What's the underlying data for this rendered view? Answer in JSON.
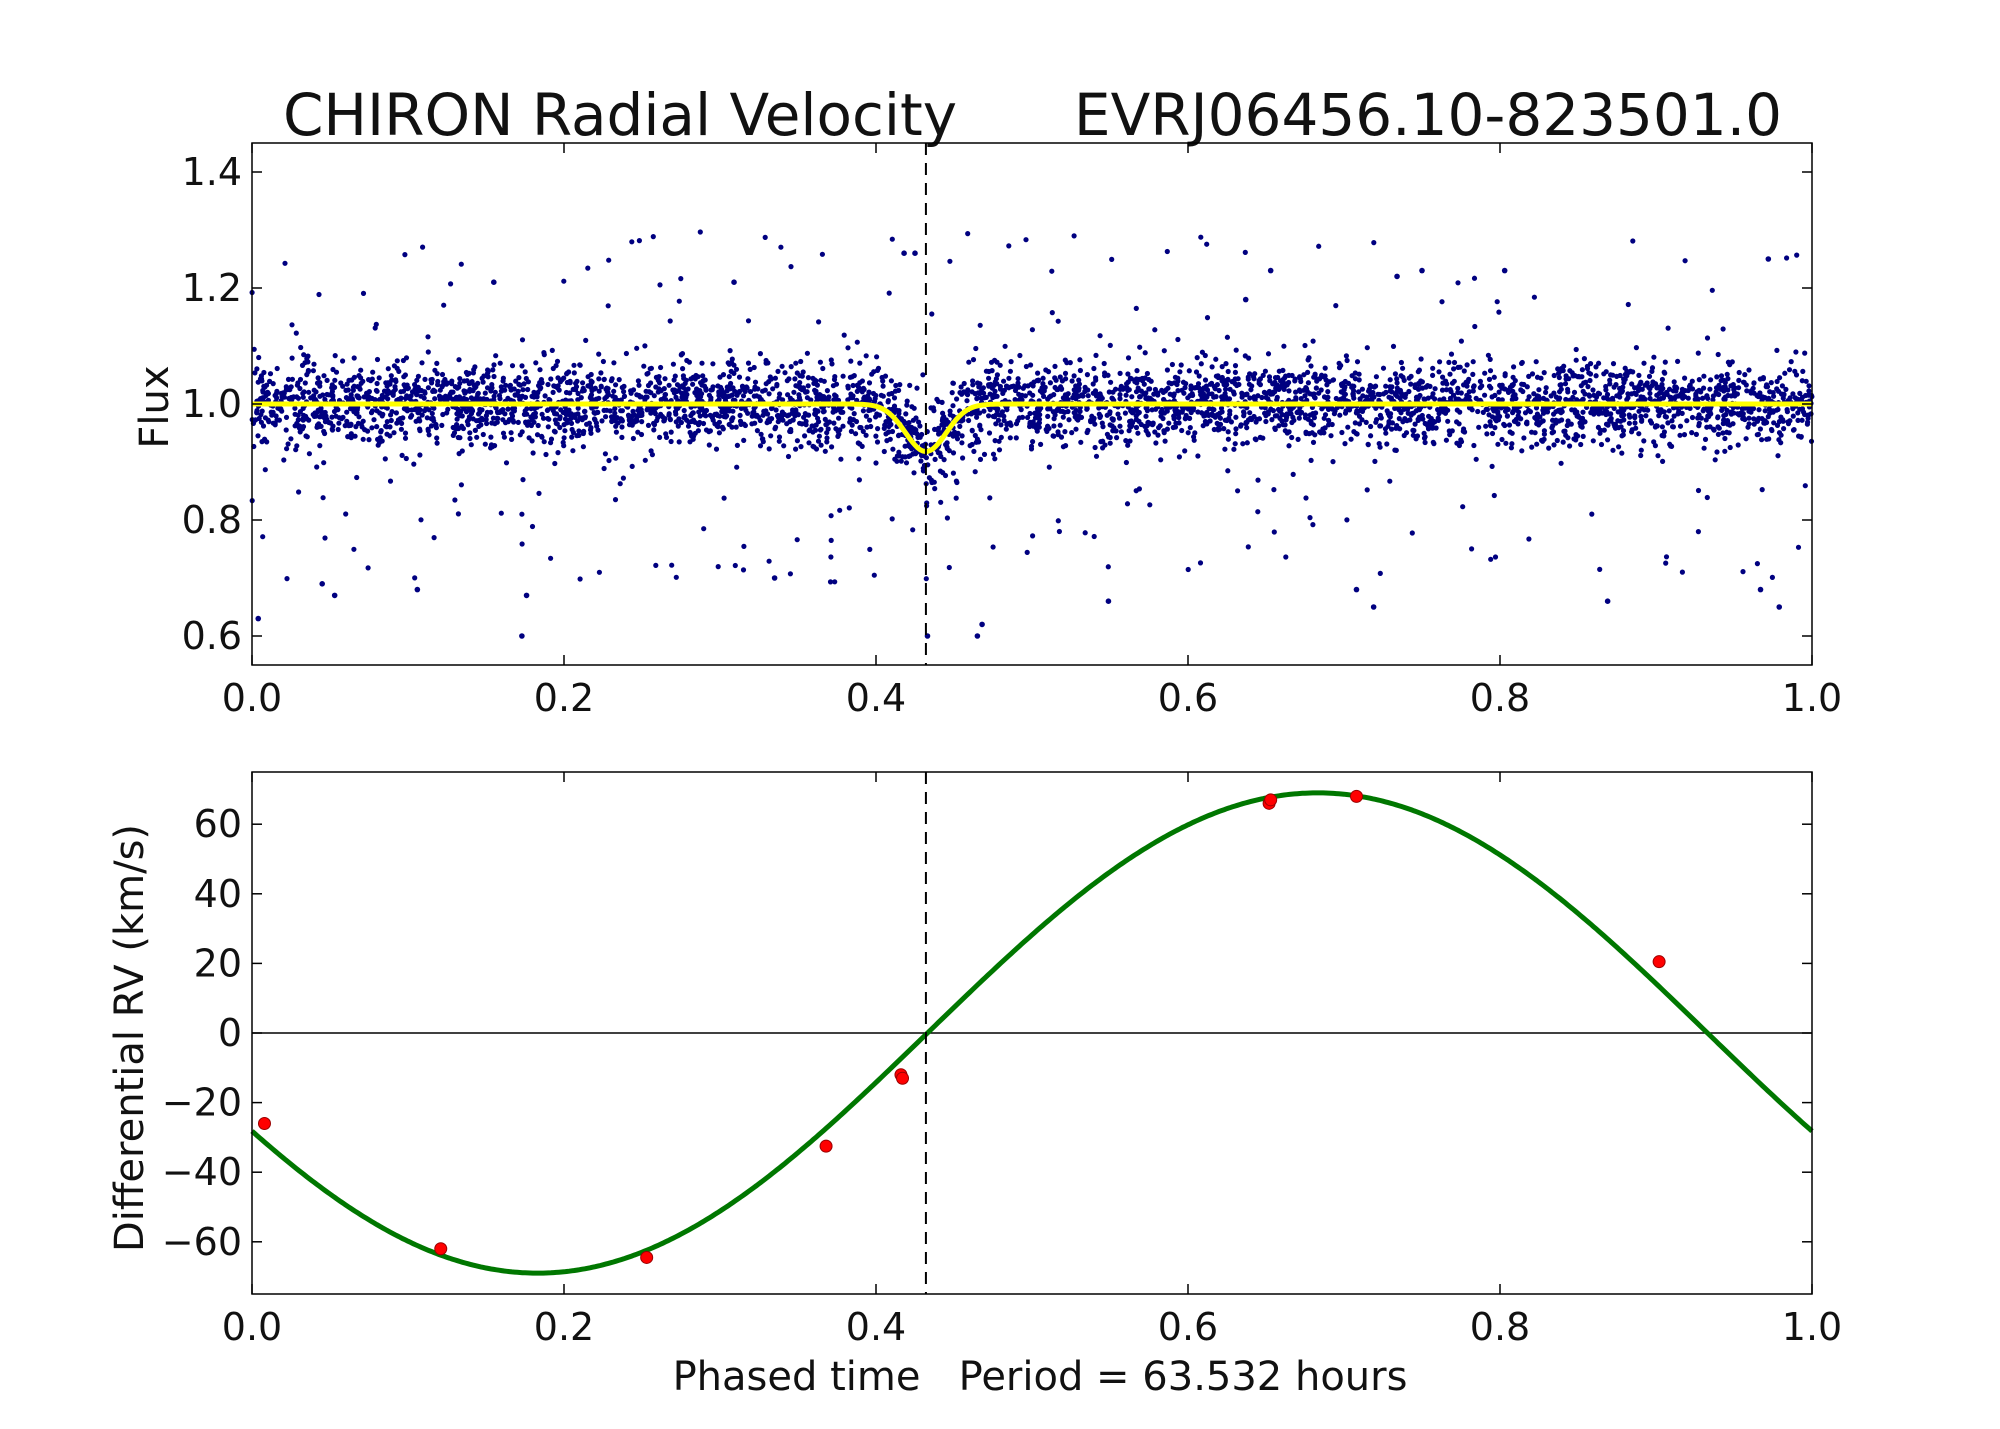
{
  "chart_data": [
    {
      "type": "scatter",
      "title": "CHIRON Radial Velocity",
      "object_name": "EVRJ06456.10-823501.0",
      "xlabel": "",
      "ylabel": "Flux",
      "xlim": [
        0.0,
        1.0
      ],
      "ylim": [
        0.55,
        1.45
      ],
      "xticks": [
        0.0,
        0.2,
        0.4,
        0.6,
        0.8,
        1.0
      ],
      "xtick_labels": [
        "0.0",
        "0.2",
        "0.4",
        "0.6",
        "0.8",
        "1.0"
      ],
      "yticks": [
        0.6,
        0.8,
        1.0,
        1.2,
        1.4
      ],
      "ytick_labels": [
        "0.6",
        "0.8",
        "1.0",
        "1.2",
        "1.4"
      ],
      "transit_phase": 0.432,
      "series": [
        {
          "name": "observed flux",
          "kind": "scatter",
          "color": "#000080",
          "description": "dense phased photometry, baseline flux 1.0 with scatter ~0.04",
          "n_points_approx": 4500,
          "baseline": 1.0,
          "scatter_sigma": 0.035,
          "outliers_sample": [
            {
              "x": 0.004,
              "y": 0.63
            },
            {
              "x": 0.045,
              "y": 0.69
            },
            {
              "x": 0.053,
              "y": 0.67
            },
            {
              "x": 0.106,
              "y": 0.68
            },
            {
              "x": 0.155,
              "y": 1.21
            },
            {
              "x": 0.173,
              "y": 0.6
            },
            {
              "x": 0.176,
              "y": 0.67
            },
            {
              "x": 0.309,
              "y": 1.21
            },
            {
              "x": 0.335,
              "y": 0.7
            },
            {
              "x": 0.418,
              "y": 1.26
            },
            {
              "x": 0.425,
              "y": 1.26
            },
            {
              "x": 0.433,
              "y": 0.6
            },
            {
              "x": 0.465,
              "y": 0.6
            },
            {
              "x": 0.468,
              "y": 0.62
            },
            {
              "x": 0.549,
              "y": 0.66
            },
            {
              "x": 0.637,
              "y": 1.18
            },
            {
              "x": 0.653,
              "y": 1.23
            },
            {
              "x": 0.708,
              "y": 0.68
            },
            {
              "x": 0.719,
              "y": 0.65
            },
            {
              "x": 0.734,
              "y": 1.22
            },
            {
              "x": 0.75,
              "y": 1.23
            },
            {
              "x": 0.803,
              "y": 1.23
            },
            {
              "x": 0.869,
              "y": 0.66
            },
            {
              "x": 0.967,
              "y": 0.68
            },
            {
              "x": 0.972,
              "y": 1.25
            },
            {
              "x": 0.979,
              "y": 0.65
            }
          ]
        },
        {
          "name": "transit model",
          "kind": "line",
          "color": "#ffff00",
          "baseline": 1.0,
          "transit_center": 0.432,
          "transit_depth": 0.082,
          "transit_width": 0.013
        }
      ]
    },
    {
      "type": "scatter",
      "title": "",
      "xlabel": "Phased time   Period = 63.532 hours",
      "ylabel": "Differential RV (km/s)",
      "xlim": [
        0.0,
        1.0
      ],
      "ylim": [
        -75,
        75
      ],
      "xticks": [
        0.0,
        0.2,
        0.4,
        0.6,
        0.8,
        1.0
      ],
      "xtick_labels": [
        "0.0",
        "0.2",
        "0.4",
        "0.6",
        "0.8",
        "1.0"
      ],
      "yticks": [
        -60,
        -40,
        -20,
        0,
        20,
        40,
        60
      ],
      "ytick_labels": [
        "−60",
        "−40",
        "−20",
        "0",
        "20",
        "40",
        "60"
      ],
      "transit_phase": 0.432,
      "series": [
        {
          "name": "RV measurements",
          "kind": "scatter",
          "color": "#ff0000",
          "points": [
            {
              "x": 0.008,
              "y": -26.0
            },
            {
              "x": 0.121,
              "y": -62.0
            },
            {
              "x": 0.253,
              "y": -64.5
            },
            {
              "x": 0.368,
              "y": -32.5
            },
            {
              "x": 0.416,
              "y": -12.0
            },
            {
              "x": 0.417,
              "y": -13.0
            },
            {
              "x": 0.652,
              "y": 66.0
            },
            {
              "x": 0.653,
              "y": 67.0
            },
            {
              "x": 0.708,
              "y": 68.0
            },
            {
              "x": 0.902,
              "y": 20.5
            }
          ]
        },
        {
          "name": "sinusoidal fit",
          "kind": "line",
          "color": "#007700",
          "amplitude_kms": 69.0,
          "zero_crossing_phase": 0.433,
          "form": "y = 69 * sin(2*pi*(x - 0.433))"
        }
      ]
    }
  ]
}
